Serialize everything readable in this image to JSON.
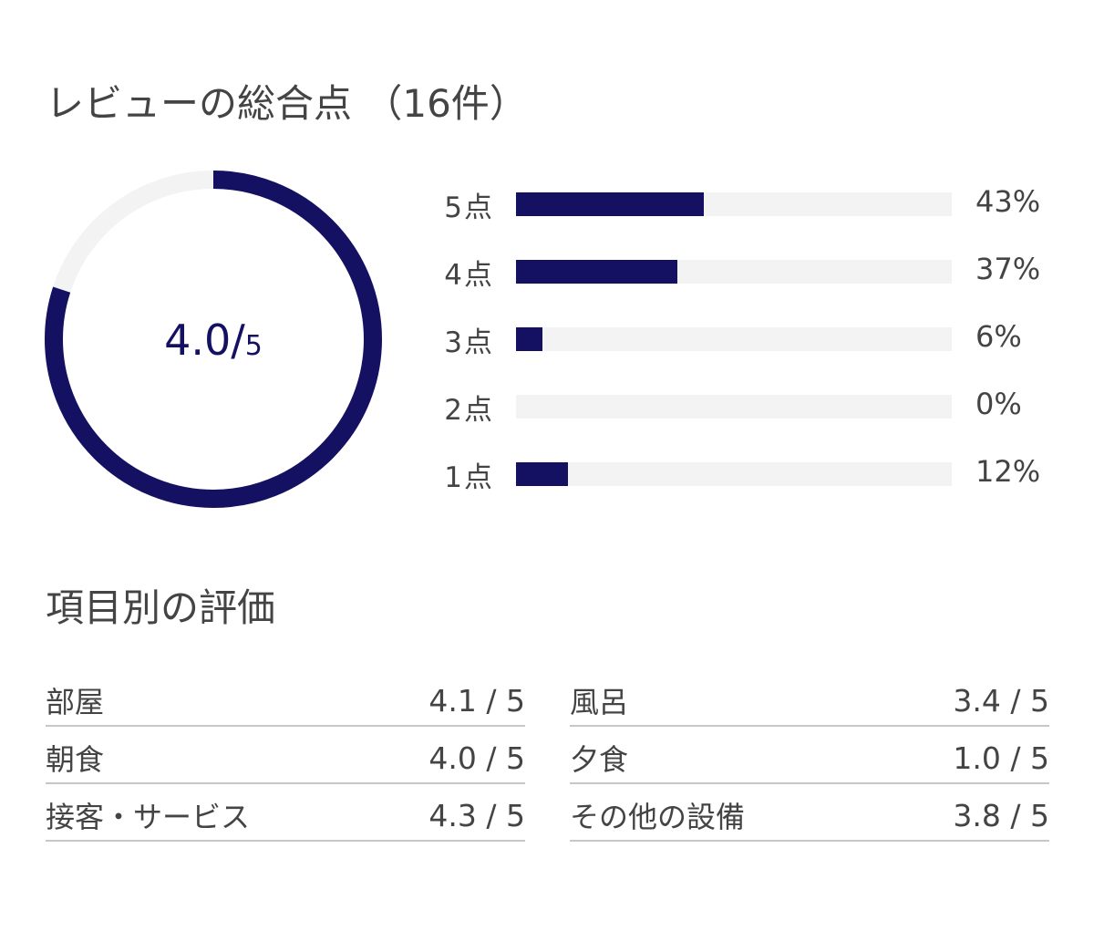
{
  "summary": {
    "title": "レビューの総合点 （16件）",
    "score": {
      "value": "4.0",
      "separator": "/",
      "max": "5",
      "fraction": 0.8
    },
    "distribution": [
      {
        "label": "5点",
        "percent_label": "43%",
        "percent": 43
      },
      {
        "label": "4点",
        "percent_label": "37%",
        "percent": 37
      },
      {
        "label": "3点",
        "percent_label": "6%",
        "percent": 6
      },
      {
        "label": "2点",
        "percent_label": "0%",
        "percent": 0
      },
      {
        "label": "1点",
        "percent_label": "12%",
        "percent": 12
      }
    ]
  },
  "category_ratings": {
    "title": "項目別の評価",
    "left": [
      {
        "name": "部屋",
        "score": "4.1 / 5"
      },
      {
        "name": "朝食",
        "score": "4.0 / 5"
      },
      {
        "name": "接客・サービス",
        "score": "4.3 / 5"
      }
    ],
    "right": [
      {
        "name": "風呂",
        "score": "3.4 / 5"
      },
      {
        "name": "夕食",
        "score": "1.0 / 5"
      },
      {
        "name": "その他の設備",
        "score": "3.8 / 5"
      }
    ]
  },
  "colors": {
    "accent": "#141062",
    "track": "#f3f3f4",
    "text": "#444444",
    "divider": "#c7c7c7"
  }
}
